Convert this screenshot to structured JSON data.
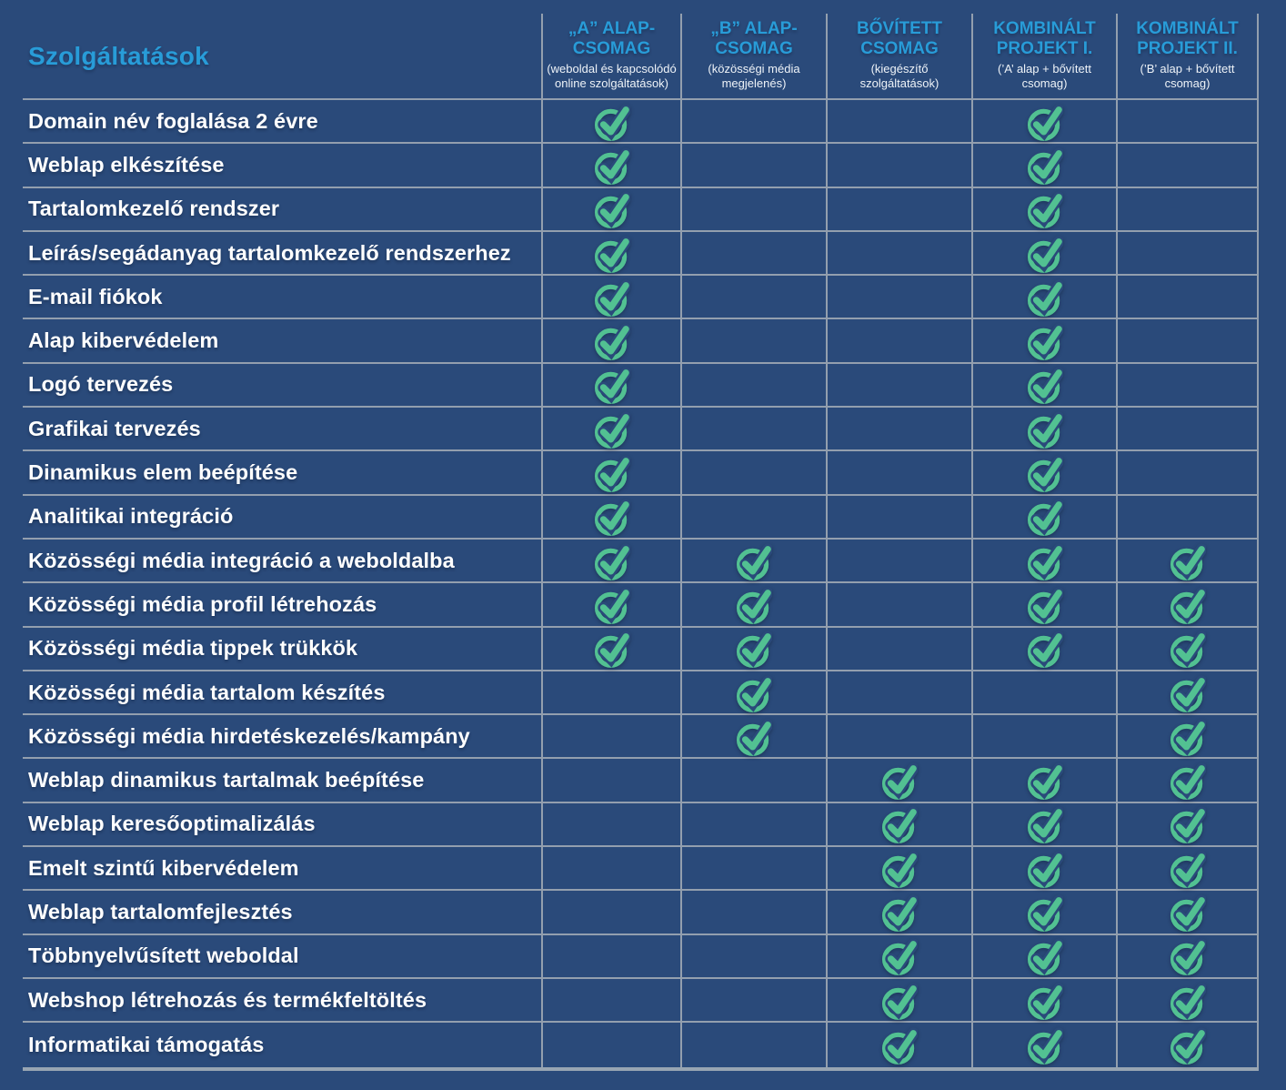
{
  "chart_data": {
    "type": "table",
    "title": "Szolgáltatások",
    "columns": [
      {
        "title": "„A” ALAP-CSOMAG",
        "subtitle": "(weboldal és kapcsolódó online szolgáltatások)"
      },
      {
        "title": "„B” ALAP-CSOMAG",
        "subtitle": "(közösségi média megjelenés)"
      },
      {
        "title": "BŐVÍTETT CSOMAG",
        "subtitle": "(kiegészítő szolgáltatások)"
      },
      {
        "title": "KOMBINÁLT PROJEKT I.",
        "subtitle": "(’A’ alap + bővített csomag)"
      },
      {
        "title": "KOMBINÁLT PROJEKT II.",
        "subtitle": "(’B’ alap + bővített csomag)"
      }
    ],
    "check_icon": "check-circle-icon",
    "colors": {
      "background": "#2a4a7a",
      "accent_blue": "#289cd8",
      "check_green": "#52c192",
      "grid_line": "#939fae",
      "bottom_border": "#98a5b2",
      "row_text": "#ffffff"
    },
    "rows": [
      {
        "label": "Domain név foglalása 2 évre",
        "checks": [
          true,
          false,
          false,
          true,
          false
        ]
      },
      {
        "label": "Weblap elkészítése",
        "checks": [
          true,
          false,
          false,
          true,
          false
        ]
      },
      {
        "label": "Tartalomkezelő rendszer",
        "checks": [
          true,
          false,
          false,
          true,
          false
        ]
      },
      {
        "label": "Leírás/segádanyag tartalomkezelő rendszerhez",
        "checks": [
          true,
          false,
          false,
          true,
          false
        ]
      },
      {
        "label": "E-mail fiókok",
        "checks": [
          true,
          false,
          false,
          true,
          false
        ]
      },
      {
        "label": "Alap kibervédelem",
        "checks": [
          true,
          false,
          false,
          true,
          false
        ]
      },
      {
        "label": "Logó tervezés",
        "checks": [
          true,
          false,
          false,
          true,
          false
        ]
      },
      {
        "label": "Grafikai tervezés",
        "checks": [
          true,
          false,
          false,
          true,
          false
        ]
      },
      {
        "label": "Dinamikus elem beépítése",
        "checks": [
          true,
          false,
          false,
          true,
          false
        ]
      },
      {
        "label": "Analitikai integráció",
        "checks": [
          true,
          false,
          false,
          true,
          false
        ]
      },
      {
        "label": "Közösségi média integráció a weboldalba",
        "checks": [
          true,
          true,
          false,
          true,
          true
        ]
      },
      {
        "label": "Közösségi média profil létrehozás",
        "checks": [
          true,
          true,
          false,
          true,
          true
        ]
      },
      {
        "label": "Közösségi média tippek trükkök",
        "checks": [
          true,
          true,
          false,
          true,
          true
        ]
      },
      {
        "label": "Közösségi média tartalom készítés",
        "checks": [
          false,
          true,
          false,
          false,
          true
        ]
      },
      {
        "label": "Közösségi média hirdetéskezelés/kampány",
        "checks": [
          false,
          true,
          false,
          false,
          true
        ]
      },
      {
        "label": "Weblap dinamikus tartalmak beépítése",
        "checks": [
          false,
          false,
          true,
          true,
          true
        ]
      },
      {
        "label": "Weblap keresőoptimalizálás",
        "checks": [
          false,
          false,
          true,
          true,
          true
        ]
      },
      {
        "label": "Emelt szintű kibervédelem",
        "checks": [
          false,
          false,
          true,
          true,
          true
        ]
      },
      {
        "label": "Weblap tartalomfejlesztés",
        "checks": [
          false,
          false,
          true,
          true,
          true
        ]
      },
      {
        "label": "Többnyelvűsített weboldal",
        "checks": [
          false,
          false,
          true,
          true,
          true
        ]
      },
      {
        "label": "Webshop létrehozás és termékfeltöltés",
        "checks": [
          false,
          false,
          true,
          true,
          true
        ]
      },
      {
        "label": "Informatikai támogatás",
        "checks": [
          false,
          false,
          true,
          true,
          true
        ]
      }
    ]
  }
}
